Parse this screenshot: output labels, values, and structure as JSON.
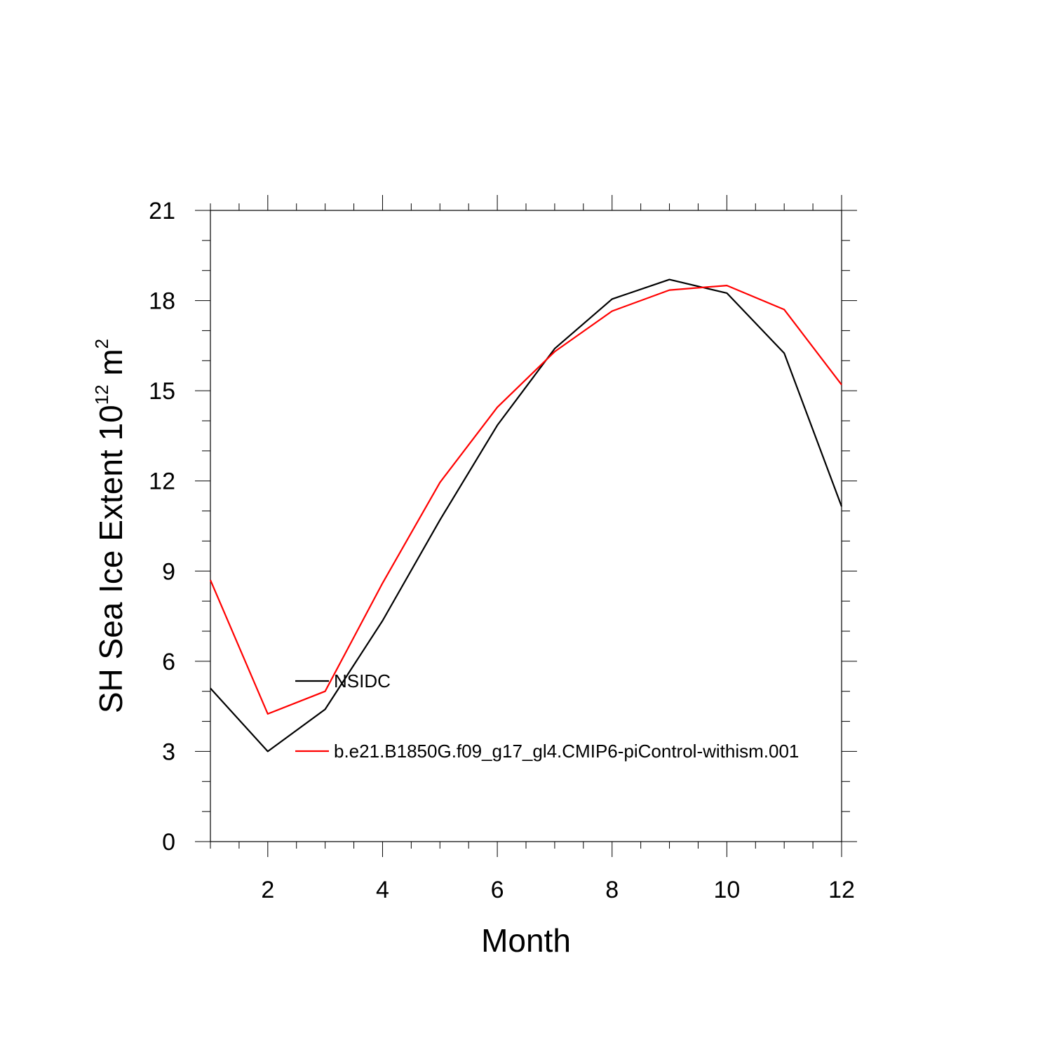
{
  "chart_data": {
    "type": "line",
    "title": "",
    "xlabel": "Month",
    "ylabel": {
      "base": "SH Sea Ice Extent 10",
      "exp1": "12",
      "mid": " m",
      "exp2": "2"
    },
    "xlim": [
      1,
      12
    ],
    "ylim": [
      0,
      21
    ],
    "x_ticks": [
      2,
      4,
      6,
      8,
      10,
      12
    ],
    "y_ticks": [
      0,
      3,
      6,
      9,
      12,
      15,
      18,
      21
    ],
    "grid": false,
    "legend_position": "inside-lower-left",
    "x": [
      1,
      2,
      3,
      4,
      5,
      6,
      7,
      8,
      9,
      10,
      11,
      12
    ],
    "series": [
      {
        "name": "NSIDC",
        "color": "#000000",
        "values": [
          5.1,
          3.0,
          4.4,
          7.35,
          10.7,
          13.85,
          16.4,
          18.05,
          18.7,
          18.25,
          16.25,
          11.15
        ]
      },
      {
        "name": "b.e21.B1850G.f09_g17_gl4.CMIP6-piControl-withism.001",
        "color": "#ff0000",
        "values": [
          8.7,
          4.25,
          5.0,
          8.6,
          11.95,
          14.45,
          16.3,
          17.65,
          18.35,
          18.5,
          17.7,
          15.2
        ]
      }
    ]
  }
}
